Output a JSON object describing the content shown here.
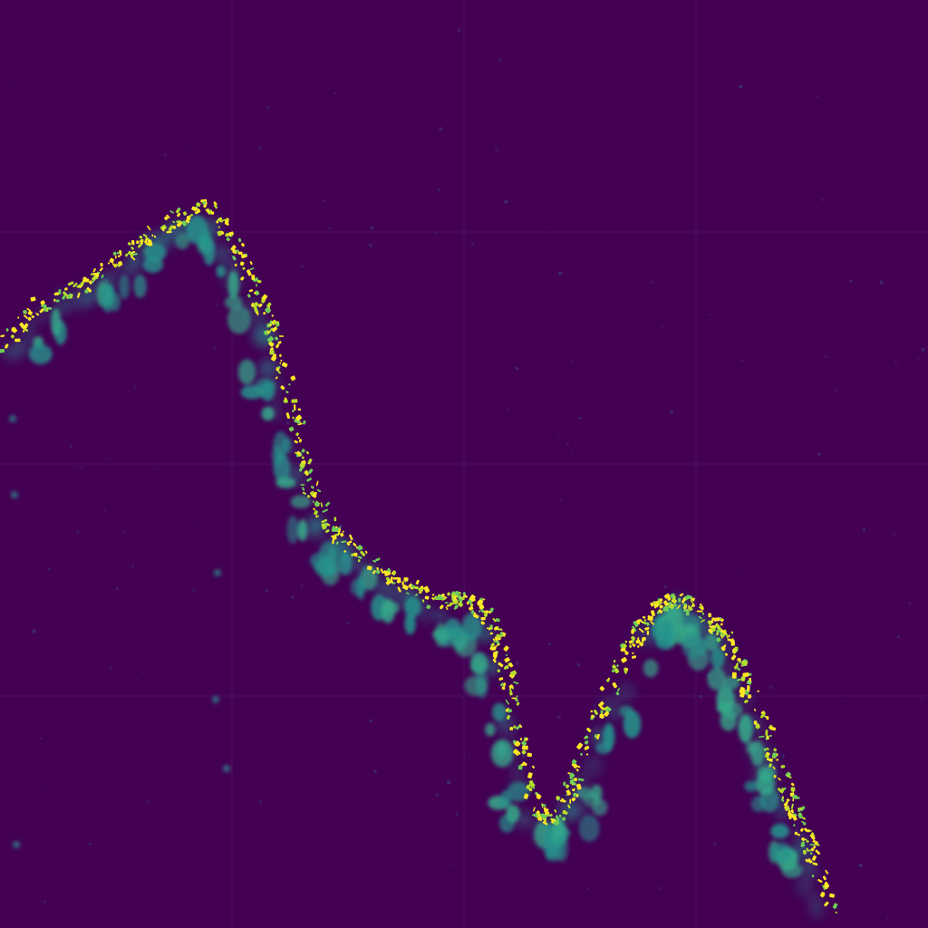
{
  "image": {
    "colormap": "viridis",
    "colors": {
      "background": "#440154",
      "tile_seam": "#4a0a5c",
      "noise": "#3b5a8c",
      "blob": "#26928c",
      "blob_light": "#35a98a",
      "speckle": "#fde725",
      "speckle_mid": "#b5de2b",
      "speckle_low": "#6ece58"
    },
    "grid_tiles": [
      4,
      4
    ]
  }
}
